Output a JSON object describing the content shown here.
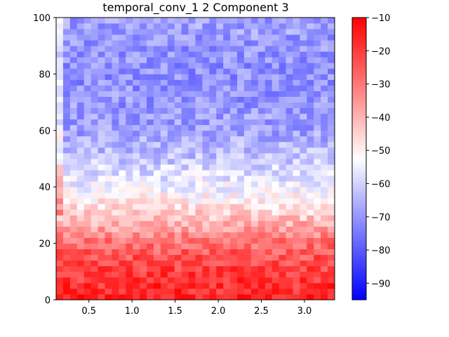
{
  "chart_data": {
    "type": "heatmap",
    "title": "temporal_conv_1 2 Component 3",
    "xlabel": "",
    "ylabel": "",
    "xlim": [
      0.12,
      3.35
    ],
    "ylim": [
      0,
      100
    ],
    "x_ticks": [
      "0.5",
      "1.0",
      "1.5",
      "2.0",
      "2.5",
      "3.0"
    ],
    "x_tick_values": [
      0.5,
      1.0,
      1.5,
      2.0,
      2.5,
      3.0
    ],
    "y_ticks": [
      "0",
      "20",
      "40",
      "60",
      "80",
      "100"
    ],
    "y_tick_values": [
      0,
      20,
      40,
      60,
      80,
      100
    ],
    "colorbar": {
      "min": -95,
      "max": -10,
      "ticks": [
        "−10",
        "−20",
        "−30",
        "−40",
        "−50",
        "−60",
        "−70",
        "−80",
        "−90"
      ],
      "tick_values": [
        -10,
        -20,
        -30,
        -40,
        -50,
        -60,
        -70,
        -80,
        -90
      ],
      "colormap": "bwr"
    },
    "grid": {
      "columns": 40,
      "rows": 50,
      "row_profile_y": [
        0,
        10,
        20,
        30,
        40,
        50,
        60,
        70,
        80,
        90,
        100
      ],
      "row_profile_value": [
        -16,
        -20,
        -28,
        -44,
        -54,
        -62,
        -68,
        -70,
        -71,
        -70,
        -68
      ],
      "noise": 7,
      "left_column_offset": 12
    },
    "colors": {
      "low": "#0000ff",
      "mid": "#ffffff",
      "high": "#ff0000"
    }
  }
}
